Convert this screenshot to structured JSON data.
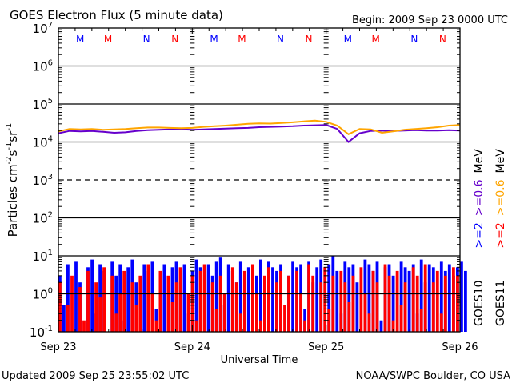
{
  "chart_data": {
    "type": "line",
    "title": "GOES Electron Flux (5 minute data)",
    "begin": "Begin: 2009 Sep 23 0000 UTC",
    "xlabel": "Universal Time",
    "ylabel": "Particles cm⁻²s⁻¹sr⁻¹",
    "ylabel_parts": [
      "Particles cm",
      "-2",
      "s",
      "-1",
      "sr",
      "-1"
    ],
    "updated": "Updated 2009 Sep 25 23:55:02 UTC",
    "credit": "NOAA/SWPC Boulder, CO USA",
    "x_range_hours": [
      0,
      72
    ],
    "x_ticks": [
      {
        "h": 0,
        "label": "Sep 23"
      },
      {
        "h": 24,
        "label": "Sep 24"
      },
      {
        "h": 48,
        "label": "Sep 25"
      },
      {
        "h": 72,
        "label": "Sep 26"
      }
    ],
    "y_scale": "log",
    "ylim": [
      0.1,
      10000000
    ],
    "y_ticks": [
      {
        "exp": "7"
      },
      {
        "exp": "6"
      },
      {
        "exp": "5"
      },
      {
        "exp": "4"
      },
      {
        "exp": "3"
      },
      {
        "exp": "2"
      },
      {
        "exp": "1"
      },
      {
        "exp": "0"
      },
      {
        "exp": "-1"
      }
    ],
    "y_tick_base": "10",
    "markers": [
      {
        "h": 3.9,
        "label": "M",
        "color": "#0000ff"
      },
      {
        "h": 8.9,
        "label": "M",
        "color": "#ff0000"
      },
      {
        "h": 15.8,
        "label": "N",
        "color": "#0000ff"
      },
      {
        "h": 20.9,
        "label": "N",
        "color": "#ff0000"
      },
      {
        "h": 27.9,
        "label": "M",
        "color": "#0000ff"
      },
      {
        "h": 32.9,
        "label": "M",
        "color": "#ff0000"
      },
      {
        "h": 39.8,
        "label": "N",
        "color": "#0000ff"
      },
      {
        "h": 44.9,
        "label": "N",
        "color": "#ff0000"
      },
      {
        "h": 51.9,
        "label": "M",
        "color": "#0000ff"
      },
      {
        "h": 56.9,
        "label": "M",
        "color": "#ff0000"
      },
      {
        "h": 63.8,
        "label": "N",
        "color": "#0000ff"
      },
      {
        "h": 68.9,
        "label": "N",
        "color": "#ff0000"
      }
    ],
    "legend": {
      "placement": "right",
      "columns": [
        {
          "sat": "GOES10",
          "ch2": ">=2",
          "ch2_color": "#0000ff",
          "ch06": ">=0.6",
          "ch06_color": "#6600cc",
          "unit": "MeV"
        },
        {
          "sat": "GOES11",
          "ch2": ">=2",
          "ch2_color": "#ff0000",
          "ch06": ">=0.6",
          "ch06_color": "#ffa500",
          "unit": "MeV"
        }
      ]
    },
    "line_step_hours": 2,
    "series": [
      {
        "name": "GOES10 >=0.6 MeV",
        "color": "#6600cc",
        "values": [
          17000,
          19500,
          19000,
          19500,
          18500,
          17500,
          18000,
          19500,
          20500,
          21000,
          21500,
          21500,
          21000,
          21500,
          22000,
          22500,
          23000,
          23500,
          24500,
          25000,
          25500,
          26000,
          27000,
          27500,
          28000,
          22000,
          10000,
          17000,
          19500,
          20000,
          19500,
          20000,
          20500,
          20000,
          20000,
          20500,
          20000
        ]
      },
      {
        "name": "GOES11 >=0.6 MeV",
        "color": "#ffa500",
        "values": [
          19000,
          22000,
          21500,
          22000,
          21000,
          21500,
          22000,
          23000,
          24000,
          24000,
          23500,
          23000,
          23500,
          25000,
          26000,
          27000,
          28500,
          30000,
          31000,
          30500,
          31500,
          33000,
          35000,
          36500,
          34000,
          27000,
          16000,
          22000,
          21500,
          17500,
          19000,
          21000,
          22000,
          23000,
          24500,
          27000,
          28000
        ]
      },
      {
        "name": "GOES10 >=2 MeV",
        "color": "#0000ff",
        "type": "bar",
        "step_hours": 0.72,
        "values": [
          3,
          0.5,
          6,
          0.1,
          7,
          2,
          0.1,
          5,
          8,
          0.3,
          6,
          4,
          0.1,
          7,
          3,
          6,
          0.2,
          5,
          8,
          2,
          0.1,
          6,
          4,
          7,
          0.4,
          3,
          6,
          0.1,
          5,
          7,
          2,
          6,
          0.3,
          4,
          8,
          5,
          0.1,
          6,
          3,
          7,
          9,
          0.5,
          6,
          4,
          2,
          7,
          0.1,
          5,
          6,
          3,
          8,
          0.2,
          7,
          5,
          4,
          6,
          0.1,
          3,
          7,
          5,
          6,
          0.4,
          7,
          2,
          5,
          8,
          0.1,
          6,
          10,
          4,
          0.3,
          7,
          5,
          6,
          2,
          0.1,
          8,
          6,
          4,
          7,
          0.2,
          5,
          6,
          3,
          0.1,
          7,
          5,
          4,
          6,
          0.3,
          8,
          2,
          6,
          5,
          0.1,
          7,
          4,
          6,
          3,
          5,
          7,
          4
        ]
      },
      {
        "name": "GOES11 >=2 MeV",
        "color": "#ff0000",
        "type": "bar",
        "step_hours": 0.72,
        "values": [
          2,
          0.1,
          0.5,
          3,
          0.1,
          1.5,
          0.2,
          4,
          0.1,
          2,
          0.8,
          5,
          0.1,
          3,
          0.3,
          1,
          4,
          0.1,
          2,
          0.5,
          3,
          0.1,
          6,
          1,
          0.2,
          4,
          0.1,
          3,
          0.6,
          2,
          5,
          0.1,
          1,
          3,
          0.2,
          4,
          6,
          0.1,
          2,
          0.4,
          3,
          1,
          0.1,
          5,
          2,
          0.3,
          4,
          0.1,
          6,
          1,
          0.2,
          3,
          5,
          0.1,
          2,
          4,
          0.5,
          3,
          0.1,
          4,
          1,
          0.2,
          6,
          3,
          0.1,
          2,
          5,
          0.4,
          3,
          0.1,
          4,
          2,
          0.6,
          3,
          0.1,
          5,
          1,
          0.3,
          4,
          2,
          0.1,
          6,
          3,
          0.2,
          4,
          0.5,
          2,
          0.1,
          5,
          3,
          0.4,
          6,
          0.1,
          2,
          4,
          0.3,
          3,
          0.1,
          5,
          3
        ]
      }
    ],
    "grid": {
      "solid_at_exp": [
        6,
        5,
        4,
        2,
        1,
        0
      ],
      "dashed_at_exp": [
        3
      ]
    }
  }
}
